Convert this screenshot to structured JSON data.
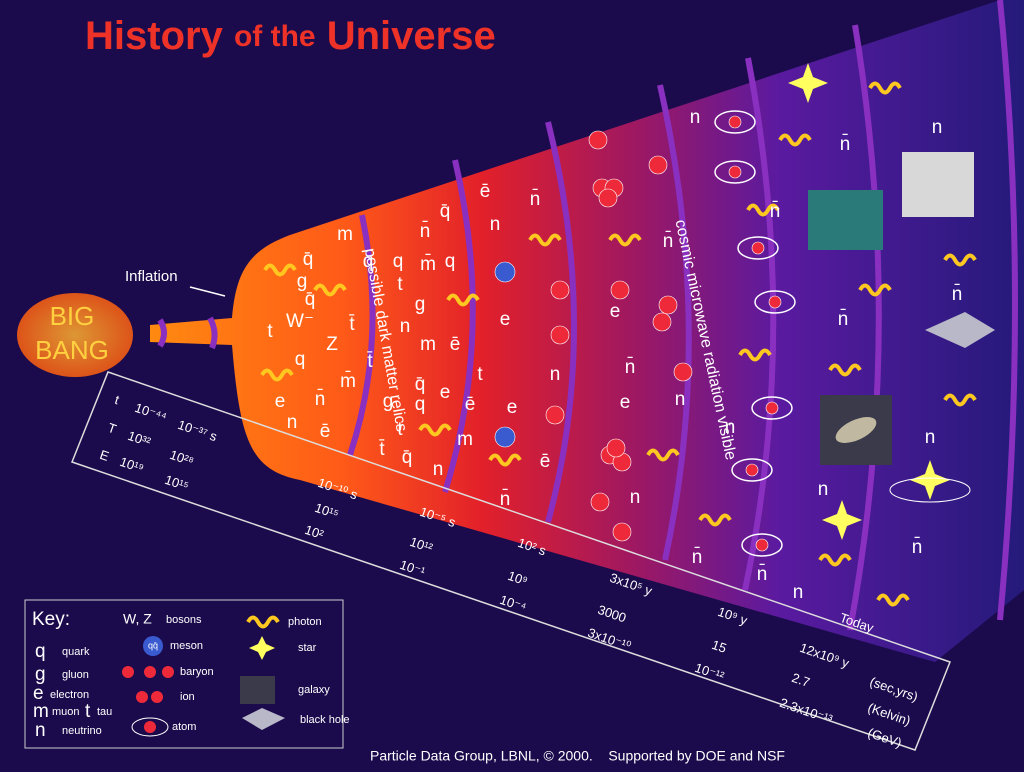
{
  "title": [
    "History",
    "of the",
    "Universe"
  ],
  "inflation": "Inflation",
  "big_bang": [
    "BIG",
    "BANG"
  ],
  "eras": [
    "possible dark matter relics",
    "cosmic microwave radiation visible"
  ],
  "timeline": {
    "rows": [
      "t",
      "T",
      "E"
    ],
    "columns": [
      [
        "10⁻⁴⁴",
        "10³²",
        "10¹⁹"
      ],
      [
        "10⁻³⁷ s",
        "10²⁸",
        "10¹⁵"
      ],
      [
        "10⁻¹⁰ s",
        "10¹⁵",
        "10²"
      ],
      [
        "10⁻⁵ s",
        "10¹²",
        "10⁻¹"
      ],
      [
        "10² s",
        "10⁹",
        "10⁻⁴"
      ],
      [
        "3x10⁵ y",
        "3000",
        "3x10⁻¹⁰"
      ],
      [
        "10⁹ y",
        "15",
        "10⁻¹²"
      ],
      [
        "12x10⁹ y",
        "2.7",
        "2.3x10⁻¹³"
      ]
    ],
    "units": [
      "(sec,yrs)",
      "(Kelvin)",
      "(GeV)"
    ],
    "today": "Today"
  },
  "particles": [
    "q̄",
    "m",
    "n̄",
    "ē",
    "n̄",
    "n",
    "q̄",
    "q",
    "q",
    "t",
    "m̄",
    "q",
    "g",
    "W⁻",
    "q̄",
    "t",
    "Z",
    "t̄",
    "n",
    "g",
    "m",
    "ē",
    "q",
    "t̄",
    "m̄",
    "q̄",
    "e",
    "t",
    "e",
    "n̄",
    "g",
    "q",
    "ē",
    "n",
    "ē",
    "t",
    "m",
    "t̄",
    "q̄",
    "n",
    "e",
    "e",
    "n",
    "ē",
    "n̄",
    "e",
    "n̄",
    "e",
    "n̄",
    "n",
    "n",
    "n",
    "n̄",
    "n̄",
    "n",
    "n̄",
    "n̄",
    "n",
    "n",
    "n",
    "n̄",
    "n̄",
    "n",
    "n̄"
  ],
  "key": {
    "title": "Key:",
    "items": [
      {
        "symbol": "q",
        "label": "quark"
      },
      {
        "symbol": "g",
        "label": "gluon"
      },
      {
        "symbol": "e",
        "label": "electron"
      },
      {
        "symbol": "m",
        "label": "muon"
      },
      {
        "symbol": "t",
        "label": "tau"
      },
      {
        "symbol": "n",
        "label": "neutrino"
      },
      {
        "symbol": "W, Z",
        "label": "bosons"
      },
      {
        "symbol": "qq̄",
        "label": "meson"
      },
      {
        "label": "baryon"
      },
      {
        "label": "ion"
      },
      {
        "label": "atom"
      },
      {
        "label": "photon"
      },
      {
        "label": "star"
      },
      {
        "label": "galaxy"
      },
      {
        "label": "black hole"
      }
    ]
  },
  "footer": "Particle Data Group, LBNL, © 2000.    Supported by DOE and NSF"
}
